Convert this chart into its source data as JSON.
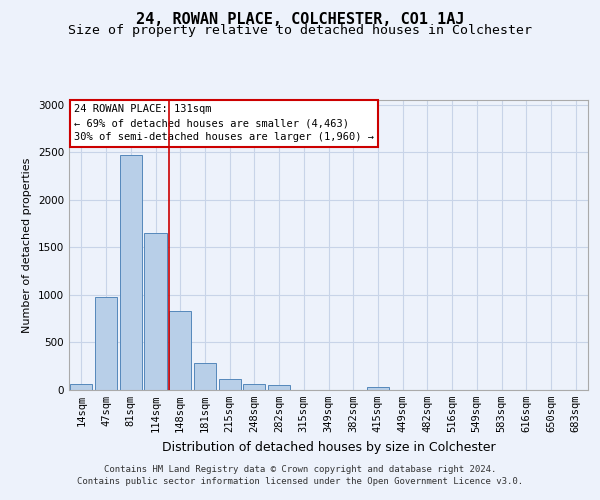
{
  "title1": "24, ROWAN PLACE, COLCHESTER, CO1 1AJ",
  "title2": "Size of property relative to detached houses in Colchester",
  "xlabel": "Distribution of detached houses by size in Colchester",
  "ylabel": "Number of detached properties",
  "footnote1": "Contains HM Land Registry data © Crown copyright and database right 2024.",
  "footnote2": "Contains public sector information licensed under the Open Government Licence v3.0.",
  "categories": [
    "14sqm",
    "47sqm",
    "81sqm",
    "114sqm",
    "148sqm",
    "181sqm",
    "215sqm",
    "248sqm",
    "282sqm",
    "315sqm",
    "349sqm",
    "382sqm",
    "415sqm",
    "449sqm",
    "482sqm",
    "516sqm",
    "549sqm",
    "583sqm",
    "616sqm",
    "650sqm",
    "683sqm"
  ],
  "values": [
    60,
    975,
    2475,
    1650,
    830,
    285,
    120,
    60,
    50,
    0,
    0,
    0,
    30,
    0,
    0,
    0,
    0,
    0,
    0,
    0,
    0
  ],
  "bar_color": "#b8cfe8",
  "bar_edge_color": "#5588bb",
  "grid_color": "#c8d4e8",
  "annotation_line1": "24 ROWAN PLACE: 131sqm",
  "annotation_line2": "← 69% of detached houses are smaller (4,463)",
  "annotation_line3": "30% of semi-detached houses are larger (1,960) →",
  "annotation_box_edge": "#cc0000",
  "vline_color": "#cc0000",
  "vline_x_index": 3.55,
  "ylim": [
    0,
    3050
  ],
  "yticks": [
    0,
    500,
    1000,
    1500,
    2000,
    2500,
    3000
  ],
  "background_color": "#edf2fb",
  "plot_bg_color": "#edf2fb",
  "title1_fontsize": 11,
  "title2_fontsize": 9.5,
  "xlabel_fontsize": 9,
  "ylabel_fontsize": 8,
  "tick_fontsize": 7.5,
  "annotation_fontsize": 7.5,
  "footnote_fontsize": 6.5
}
